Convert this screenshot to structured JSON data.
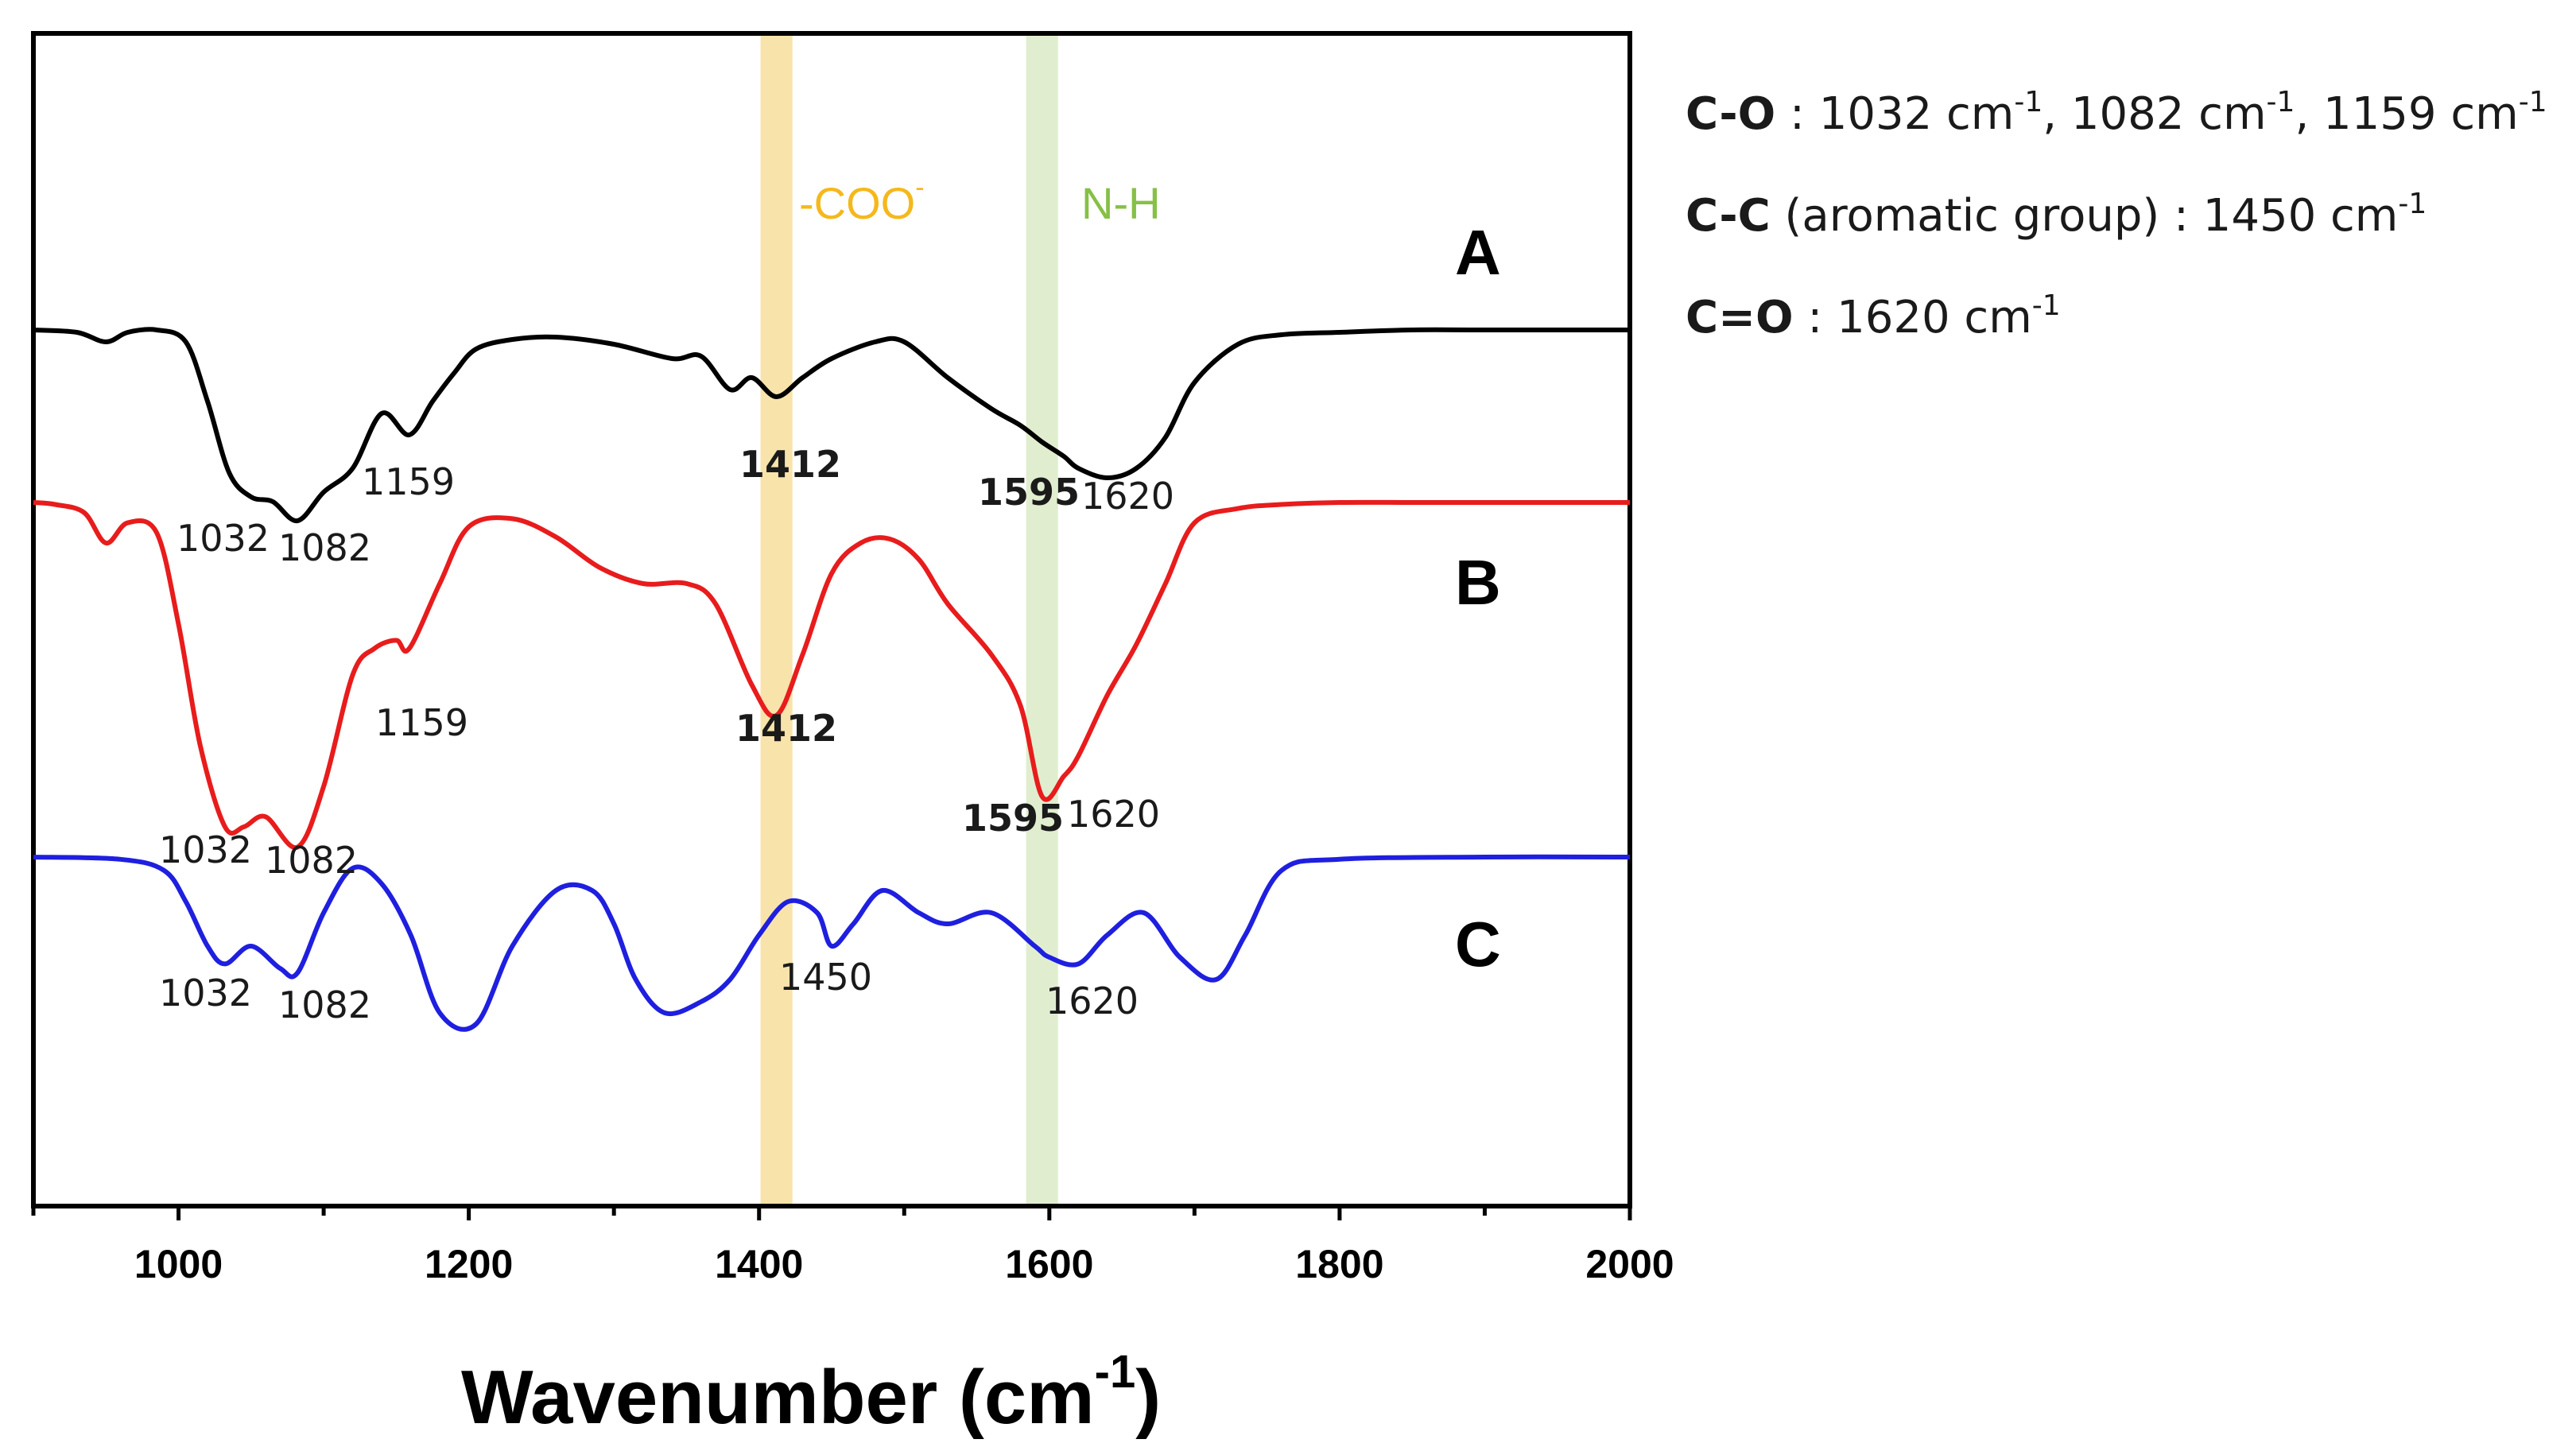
{
  "chart_data": {
    "type": "line",
    "xlabel": "Wavenumber (cm",
    "xlabel_sup": "-1",
    "xlabel_close": ")",
    "xlim": [
      900,
      2000
    ],
    "xticks": [
      1000,
      1200,
      1400,
      1600,
      1800,
      2000
    ],
    "grid": false,
    "bands": [
      {
        "name": "-COO",
        "sup": "-",
        "center": 1412,
        "width": 22,
        "color": "#f5d98e",
        "text_color": "#f5b81c"
      },
      {
        "name": "N-H",
        "sup": "",
        "center": 1595,
        "width": 22,
        "color": "#d6e8bf",
        "text_color": "#86c046"
      }
    ],
    "series": [
      {
        "name": "A",
        "color": "#000000",
        "offset": 1.0,
        "x": [
          900,
          930,
          950,
          965,
          985,
          1005,
          1020,
          1035,
          1050,
          1065,
          1082,
          1100,
          1120,
          1140,
          1159,
          1175,
          1190,
          1205,
          1230,
          1260,
          1300,
          1340,
          1360,
          1380,
          1395,
          1412,
          1430,
          1450,
          1480,
          1500,
          1530,
          1560,
          1580,
          1595,
          1610,
          1620,
          1640,
          1660,
          1680,
          1700,
          1730,
          1760,
          1800,
          1850,
          1900,
          2000
        ],
        "y": [
          0,
          -0.01,
          -0.05,
          -0.01,
          0,
          -0.05,
          -0.3,
          -0.6,
          -0.7,
          -0.72,
          -0.8,
          -0.68,
          -0.58,
          -0.35,
          -0.44,
          -0.3,
          -0.18,
          -0.08,
          -0.04,
          -0.03,
          -0.06,
          -0.12,
          -0.11,
          -0.25,
          -0.2,
          -0.28,
          -0.2,
          -0.12,
          -0.05,
          -0.05,
          -0.2,
          -0.33,
          -0.4,
          -0.47,
          -0.53,
          -0.58,
          -0.62,
          -0.58,
          -0.45,
          -0.22,
          -0.06,
          -0.02,
          -0.01,
          0,
          0,
          0
        ]
      },
      {
        "name": "B",
        "color": "#e81c1c",
        "offset": 0,
        "x": [
          900,
          915,
          935,
          950,
          965,
          985,
          1000,
          1015,
          1032,
          1045,
          1060,
          1082,
          1100,
          1120,
          1135,
          1150,
          1159,
          1180,
          1200,
          1230,
          1260,
          1290,
          1320,
          1350,
          1370,
          1395,
          1412,
          1430,
          1450,
          1470,
          1490,
          1510,
          1530,
          1560,
          1580,
          1595,
          1610,
          1620,
          1640,
          1660,
          1680,
          1700,
          1730,
          1760,
          1800,
          1850,
          1900,
          2000
        ],
        "y": [
          0,
          -0.01,
          -0.05,
          -0.2,
          -0.1,
          -0.15,
          -0.6,
          -1.2,
          -1.6,
          -1.6,
          -1.55,
          -1.7,
          -1.4,
          -0.85,
          -0.72,
          -0.68,
          -0.72,
          -0.4,
          -0.12,
          -0.08,
          -0.17,
          -0.32,
          -0.4,
          -0.4,
          -0.5,
          -0.9,
          -1.05,
          -0.75,
          -0.35,
          -0.2,
          -0.18,
          -0.28,
          -0.5,
          -0.75,
          -1.0,
          -1.45,
          -1.35,
          -1.25,
          -0.95,
          -0.7,
          -0.4,
          -0.1,
          -0.03,
          -0.01,
          0,
          0,
          0,
          0
        ]
      },
      {
        "name": "C",
        "color": "#1f1fe0",
        "offset": -1.0,
        "x": [
          900,
          960,
          990,
          1005,
          1020,
          1032,
          1050,
          1070,
          1082,
          1100,
          1120,
          1140,
          1160,
          1180,
          1205,
          1230,
          1260,
          1285,
          1300,
          1315,
          1335,
          1360,
          1380,
          1400,
          1420,
          1440,
          1450,
          1465,
          1485,
          1510,
          1530,
          1560,
          1590,
          1600,
          1620,
          1640,
          1665,
          1690,
          1715,
          1735,
          1760,
          1800,
          1900,
          2000
        ],
        "y": [
          0,
          -0.01,
          -0.06,
          -0.2,
          -0.4,
          -0.48,
          -0.4,
          -0.5,
          -0.52,
          -0.25,
          -0.05,
          -0.12,
          -0.35,
          -0.7,
          -0.75,
          -0.4,
          -0.15,
          -0.15,
          -0.3,
          -0.55,
          -0.7,
          -0.65,
          -0.55,
          -0.35,
          -0.2,
          -0.25,
          -0.4,
          -0.3,
          -0.15,
          -0.25,
          -0.3,
          -0.25,
          -0.4,
          -0.45,
          -0.48,
          -0.35,
          -0.25,
          -0.45,
          -0.55,
          -0.35,
          -0.06,
          -0.01,
          0,
          0
        ]
      }
    ],
    "peak_labels": {
      "A": [
        {
          "text": "1032"
        },
        {
          "text": "1082"
        },
        {
          "text": "1159"
        },
        {
          "text": "1412",
          "band": 0
        },
        {
          "text": "1595",
          "band": 1
        },
        {
          "text": "1620"
        }
      ],
      "B": [
        {
          "text": "1032"
        },
        {
          "text": "1082"
        },
        {
          "text": "1159"
        },
        {
          "text": "1412",
          "band": 0
        },
        {
          "text": "1595",
          "band": 1
        },
        {
          "text": "1620"
        }
      ],
      "C": [
        {
          "text": "1032"
        },
        {
          "text": "1082"
        },
        {
          "text": "1450"
        },
        {
          "text": "1620"
        }
      ]
    },
    "legend_position": "top-right",
    "legend": [
      {
        "bold": "C-O",
        "rest": " : 1032 cm",
        "sup1": "-1",
        "mid1": ", 1082 cm",
        "sup2": "-1",
        "mid2": ", 1159 cm",
        "sup3": "-1"
      },
      {
        "bold": "C-C",
        "rest": " (aromatic group) : 1450 cm",
        "sup1": "-1"
      },
      {
        "bold": "C=O",
        "rest": " : 1620 cm",
        "sup1": "-1"
      }
    ]
  }
}
